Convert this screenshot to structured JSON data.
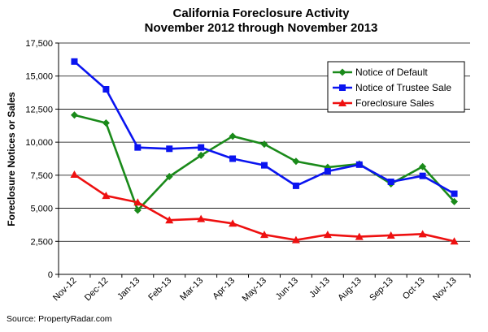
{
  "chart_data": {
    "type": "line",
    "title": "California Foreclosure Activity",
    "subtitle": "November 2012 through November 2013",
    "xlabel": "",
    "ylabel": "Foreclosure Notices or Sales",
    "ylim": [
      0,
      17500
    ],
    "yticks": [
      0,
      2500,
      5000,
      7500,
      10000,
      12500,
      15000,
      17500
    ],
    "ytick_labels": [
      "0",
      "2,500",
      "5,000",
      "7,500",
      "10,000",
      "12,500",
      "15,000",
      "17,500"
    ],
    "categories": [
      "Nov-12",
      "Dec-12",
      "Jan-13",
      "Feb-13",
      "Mar-13",
      "Apr-13",
      "May-13",
      "Jun-13",
      "Jul-13",
      "Aug-13",
      "Sep-13",
      "Oct-13",
      "Nov-13"
    ],
    "grid": "horizontal",
    "legend_position": "top-right",
    "series": [
      {
        "name": "Notice of Default",
        "color": "#1a8a1a",
        "marker": "diamond",
        "values": [
          12050,
          11450,
          4850,
          7400,
          9000,
          10450,
          9850,
          8550,
          8100,
          8350,
          6850,
          8150,
          5500
        ]
      },
      {
        "name": "Notice of Trustee Sale",
        "color": "#0a14f0",
        "marker": "square",
        "values": [
          16100,
          14000,
          9600,
          9500,
          9600,
          8750,
          8250,
          6700,
          7800,
          8300,
          7000,
          7450,
          6100
        ]
      },
      {
        "name": "Foreclosure Sales",
        "color": "#ee1010",
        "marker": "triangle",
        "values": [
          7550,
          5950,
          5450,
          4100,
          4200,
          3850,
          3000,
          2600,
          3000,
          2850,
          2950,
          3050,
          2500
        ]
      }
    ]
  },
  "source": "Source: PropertyRadar.com"
}
